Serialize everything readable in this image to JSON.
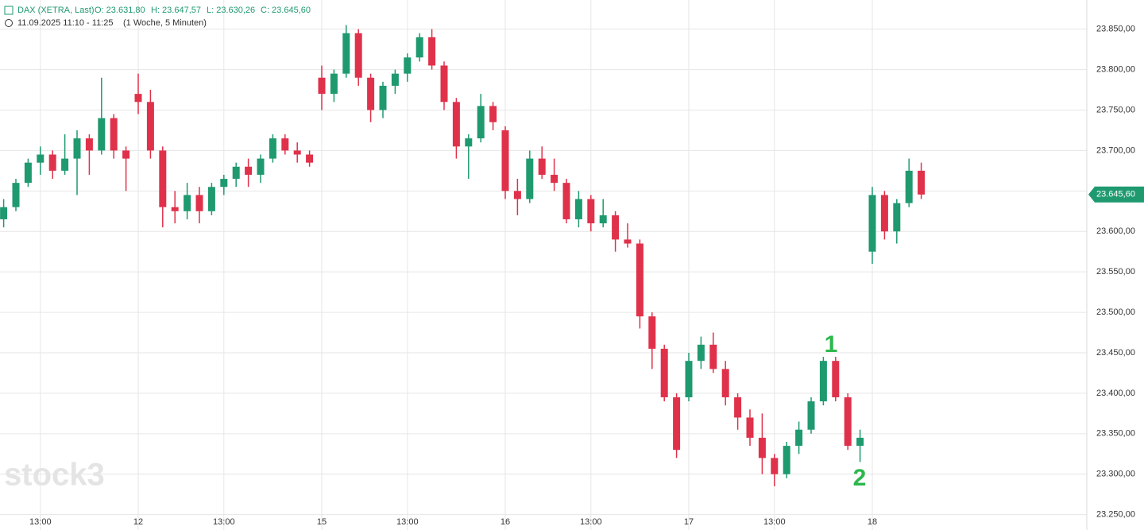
{
  "chart_data": {
    "type": "candlestick",
    "title": "DAX (XETRA, Last)",
    "ohlc_labels": [
      "O: 23.631,80",
      "H: 23.647,57",
      "L: 23.630,26",
      "C: 23.645,60"
    ],
    "subtitle": "11.09.2025 11:10 - 11:25",
    "interval": "(1 Woche, 5 Minuten)",
    "watermark": "stock3",
    "annotations": [
      "1",
      "2"
    ],
    "up_color": "#1f9a6f",
    "down_color": "#e0314b",
    "grid": true,
    "categories": [
      null,
      null,
      null,
      "13:00",
      null,
      null,
      null,
      null,
      null,
      null,
      null,
      "12",
      null,
      null,
      null,
      null,
      null,
      null,
      "13:00",
      null,
      null,
      null,
      null,
      null,
      null,
      null,
      "15",
      null,
      null,
      null,
      null,
      null,
      null,
      "13:00",
      null,
      null,
      null,
      null,
      null,
      null,
      null,
      "16",
      null,
      null,
      null,
      null,
      null,
      null,
      "13:00",
      null,
      null,
      null,
      null,
      null,
      null,
      null,
      "17",
      null,
      null,
      null,
      null,
      null,
      null,
      "13:00",
      null,
      null,
      null,
      null,
      null,
      null,
      null,
      "18",
      null,
      null,
      null,
      null
    ],
    "open": [
      23615,
      23630,
      23660,
      23685,
      23695,
      23675,
      23690,
      23715,
      23700,
      23740,
      23700,
      23770,
      23760,
      23700,
      23630,
      23625,
      23645,
      23625,
      23655,
      23665,
      23680,
      23670,
      23690,
      23715,
      23700,
      23695,
      23790,
      23770,
      23795,
      23845,
      23790,
      23750,
      23780,
      23795,
      23815,
      23840,
      23805,
      23760,
      23705,
      23715,
      23755,
      23725,
      23650,
      23640,
      23690,
      23670,
      23660,
      23615,
      23640,
      23610,
      23620,
      23590,
      23585,
      23495,
      23455,
      23395,
      23395,
      23440,
      23460,
      23430,
      23395,
      23370,
      23345,
      23320,
      23300,
      23335,
      23355,
      23390,
      23440,
      23395,
      23335,
      23575,
      23645,
      23600,
      23635,
      23675
    ],
    "high": [
      23640,
      23665,
      23690,
      23705,
      23700,
      23720,
      23725,
      23720,
      23790,
      23745,
      23705,
      23795,
      23775,
      23705,
      23650,
      23660,
      23655,
      23660,
      23670,
      23685,
      23690,
      23695,
      23720,
      23720,
      23710,
      23700,
      23805,
      23800,
      23855,
      23850,
      23795,
      23785,
      23800,
      23820,
      23845,
      23850,
      23810,
      23765,
      23720,
      23770,
      23760,
      23730,
      23665,
      23700,
      23705,
      23690,
      23665,
      23650,
      23645,
      23640,
      23625,
      23610,
      23590,
      23500,
      23460,
      23400,
      23450,
      23470,
      23475,
      23440,
      23400,
      23380,
      23375,
      23325,
      23340,
      23365,
      23395,
      23445,
      23445,
      23400,
      23355,
      23655,
      23650,
      23640,
      23690,
      23685
    ],
    "low": [
      23605,
      23625,
      23655,
      23670,
      23665,
      23670,
      23645,
      23670,
      23695,
      23690,
      23650,
      23745,
      23690,
      23605,
      23610,
      23615,
      23610,
      23620,
      23645,
      23655,
      23655,
      23660,
      23685,
      23695,
      23685,
      23680,
      23750,
      23760,
      23790,
      23780,
      23735,
      23740,
      23770,
      23785,
      23810,
      23800,
      23750,
      23690,
      23665,
      23710,
      23725,
      23640,
      23620,
      23635,
      23665,
      23650,
      23610,
      23605,
      23600,
      23605,
      23575,
      23580,
      23480,
      23430,
      23390,
      23320,
      23390,
      23430,
      23425,
      23385,
      23355,
      23335,
      23300,
      23285,
      23295,
      23325,
      23350,
      23385,
      23390,
      23330,
      23315,
      23560,
      23590,
      23585,
      23630,
      23640
    ],
    "close": [
      23630,
      23660,
      23685,
      23695,
      23675,
      23690,
      23715,
      23700,
      23740,
      23700,
      23690,
      23760,
      23700,
      23630,
      23625,
      23645,
      23625,
      23655,
      23665,
      23680,
      23670,
      23690,
      23715,
      23700,
      23695,
      23685,
      23770,
      23795,
      23845,
      23790,
      23750,
      23780,
      23795,
      23815,
      23840,
      23805,
      23760,
      23705,
      23715,
      23755,
      23735,
      23650,
      23640,
      23690,
      23670,
      23660,
      23615,
      23640,
      23610,
      23620,
      23590,
      23585,
      23495,
      23455,
      23395,
      23330,
      23440,
      23460,
      23430,
      23395,
      23370,
      23345,
      23320,
      23300,
      23335,
      23355,
      23390,
      23440,
      23395,
      23335,
      23345,
      23645,
      23600,
      23635,
      23675,
      23645.6
    ],
    "last_price": {
      "value": 23645.6,
      "label": "23.645,60"
    },
    "ylim": [
      23231,
      23886
    ],
    "yticks": [
      {
        "value": 23250,
        "label": "23.250,00"
      },
      {
        "value": 23300,
        "label": "23.300,00"
      },
      {
        "value": 23350,
        "label": "23.350,00"
      },
      {
        "value": 23400,
        "label": "23.400,00"
      },
      {
        "value": 23450,
        "label": "23.450,00"
      },
      {
        "value": 23500,
        "label": "23.500,00"
      },
      {
        "value": 23550,
        "label": "23.550,00"
      },
      {
        "value": 23600,
        "label": "23.600,00"
      },
      {
        "value": 23650,
        "label": "23.650,00"
      },
      {
        "value": 23700,
        "label": "23.700,00"
      },
      {
        "value": 23750,
        "label": "23.750,00"
      },
      {
        "value": 23800,
        "label": "23.800,00"
      },
      {
        "value": 23850,
        "label": "23.850,00"
      }
    ]
  }
}
